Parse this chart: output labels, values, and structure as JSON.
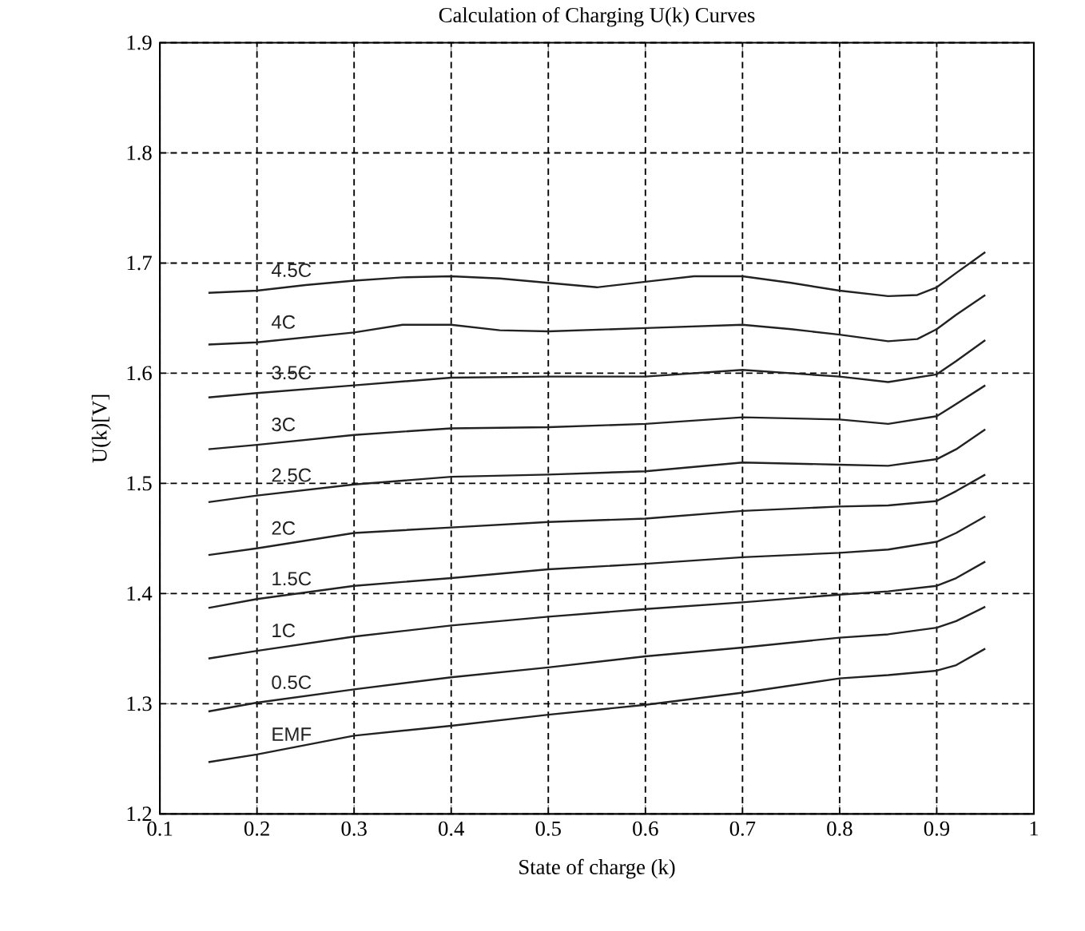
{
  "chart_data": {
    "type": "line",
    "title": "Calculation of Charging U(k) Curves",
    "xlabel": "State of charge (k)",
    "ylabel": "U(k)[V]",
    "xlim": [
      0.1,
      1
    ],
    "xticks": [
      0.1,
      0.2,
      0.3,
      0.4,
      0.5,
      0.6,
      0.7,
      0.8,
      0.9,
      1
    ],
    "ylim": [
      1.2,
      1.9
    ],
    "yticks": [
      1.2,
      1.3,
      1.4,
      1.5,
      1.6,
      1.7,
      1.8,
      1.9
    ],
    "grid": true,
    "marker": "none",
    "line_style": "solid",
    "x": [
      0.15,
      0.2,
      0.3,
      0.4,
      0.5,
      0.6,
      0.7,
      0.8,
      0.85,
      0.9,
      0.92,
      0.95
    ],
    "series": [
      {
        "name": "4.5C",
        "color": "#222222",
        "x": [
          0.15,
          0.2,
          0.25,
          0.3,
          0.35,
          0.4,
          0.45,
          0.5,
          0.55,
          0.6,
          0.65,
          0.7,
          0.75,
          0.8,
          0.85,
          0.88,
          0.9,
          0.92,
          0.95
        ],
        "values": [
          1.673,
          1.675,
          1.68,
          1.684,
          1.687,
          1.688,
          1.686,
          1.682,
          1.678,
          1.683,
          1.688,
          1.688,
          1.682,
          1.675,
          1.67,
          1.671,
          1.678,
          1.691,
          1.71
        ]
      },
      {
        "name": "4C",
        "color": "#222222",
        "x": [
          0.15,
          0.2,
          0.3,
          0.35,
          0.4,
          0.45,
          0.5,
          0.6,
          0.7,
          0.75,
          0.8,
          0.85,
          0.88,
          0.9,
          0.92,
          0.95
        ],
        "values": [
          1.626,
          1.628,
          1.637,
          1.644,
          1.644,
          1.639,
          1.638,
          1.641,
          1.644,
          1.64,
          1.635,
          1.629,
          1.631,
          1.64,
          1.653,
          1.671
        ]
      },
      {
        "name": "3.5C",
        "color": "#222222",
        "values": [
          1.578,
          1.582,
          1.589,
          1.596,
          1.597,
          1.597,
          1.603,
          1.597,
          1.592,
          1.599,
          1.611,
          1.63
        ]
      },
      {
        "name": "3C",
        "color": "#222222",
        "values": [
          1.531,
          1.535,
          1.544,
          1.55,
          1.551,
          1.554,
          1.56,
          1.558,
          1.554,
          1.561,
          1.572,
          1.589
        ]
      },
      {
        "name": "2.5C",
        "color": "#222222",
        "values": [
          1.483,
          1.489,
          1.499,
          1.506,
          1.508,
          1.511,
          1.519,
          1.517,
          1.516,
          1.522,
          1.531,
          1.549
        ]
      },
      {
        "name": "2C",
        "color": "#222222",
        "values": [
          1.435,
          1.441,
          1.455,
          1.46,
          1.465,
          1.468,
          1.475,
          1.479,
          1.48,
          1.484,
          1.493,
          1.508
        ]
      },
      {
        "name": "1.5C",
        "color": "#222222",
        "values": [
          1.387,
          1.395,
          1.407,
          1.414,
          1.422,
          1.427,
          1.433,
          1.437,
          1.44,
          1.447,
          1.455,
          1.47
        ]
      },
      {
        "name": "1C",
        "color": "#222222",
        "values": [
          1.341,
          1.348,
          1.361,
          1.371,
          1.379,
          1.386,
          1.392,
          1.399,
          1.402,
          1.407,
          1.414,
          1.429
        ]
      },
      {
        "name": "0.5C",
        "color": "#222222",
        "values": [
          1.293,
          1.301,
          1.313,
          1.324,
          1.333,
          1.343,
          1.351,
          1.36,
          1.363,
          1.369,
          1.375,
          1.388
        ]
      },
      {
        "name": "EMF",
        "color": "#222222",
        "values": [
          1.247,
          1.254,
          1.271,
          1.28,
          1.29,
          1.299,
          1.31,
          1.323,
          1.326,
          1.33,
          1.335,
          1.35
        ]
      }
    ]
  }
}
